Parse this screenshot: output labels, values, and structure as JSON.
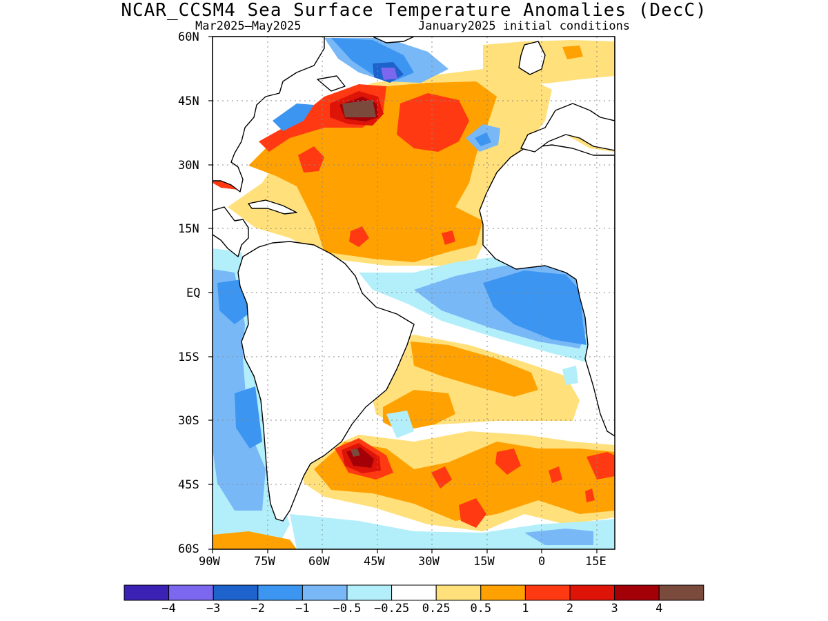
{
  "header": {
    "title": "NCAR_CCSM4 Sea Surface Temperature Anomalies (DecC)",
    "period": "Mar2025–May2025",
    "init": "January2025 initial conditions"
  },
  "map": {
    "region": "Atlantic Ocean",
    "lon_range": [
      -90,
      20
    ],
    "lat_range": [
      -60,
      60
    ],
    "lat_ticks": [
      "60N",
      "45N",
      "30N",
      "15N",
      "EQ",
      "15S",
      "30S",
      "45S",
      "60S"
    ],
    "lon_ticks": [
      "90W",
      "75W",
      "60W",
      "45W",
      "30W",
      "15W",
      "0",
      "15E"
    ],
    "grid": "dotted",
    "land_color": "#ffffff",
    "coast_color": "#000000"
  },
  "colorbar": {
    "colors": [
      "#3b22b5",
      "#7b68ee",
      "#1e62cc",
      "#3c95f0",
      "#78b8f7",
      "#b3effa",
      "#ffffff",
      "#ffe07a",
      "#ffa100",
      "#ff3a12",
      "#de1408",
      "#a30008",
      "#7a4a3c"
    ],
    "labels": [
      "−4",
      "−3",
      "−2",
      "−1",
      "−0.5",
      "−0.25",
      "0.25",
      "0.5",
      "1",
      "2",
      "3",
      "4"
    ]
  }
}
